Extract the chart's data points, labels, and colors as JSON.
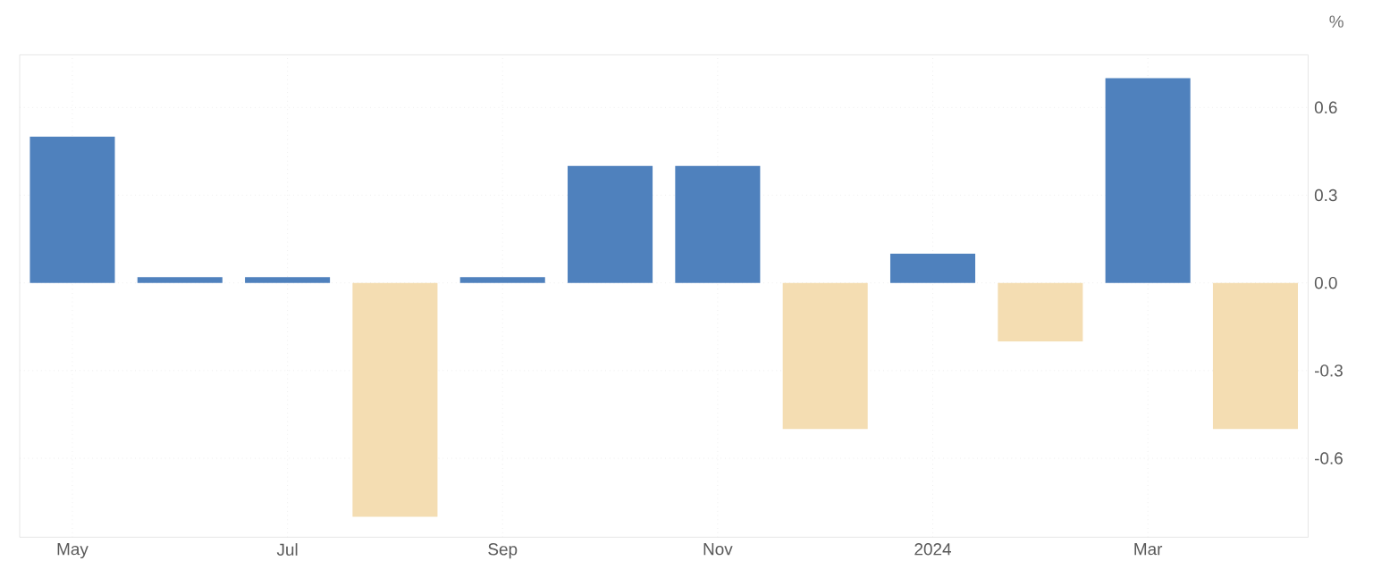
{
  "chart_data": {
    "type": "bar",
    "ylabel": "%",
    "categories": [
      "May",
      null,
      "Jul",
      null,
      "Sep",
      null,
      "Nov",
      null,
      "2024",
      null,
      "Mar",
      null
    ],
    "values": [
      0.5,
      0.02,
      0.02,
      -0.8,
      0.02,
      0.4,
      0.4,
      -0.5,
      0.1,
      -0.2,
      0.7,
      -0.5
    ],
    "colors": [
      "#4f81bd",
      "#4f81bd",
      "#4f81bd",
      "#f4ddb2",
      "#4f81bd",
      "#4f81bd",
      "#4f81bd",
      "#f4ddb2",
      "#4f81bd",
      "#f4ddb2",
      "#4f81bd",
      "#f4ddb2"
    ],
    "ylim": [
      -0.87,
      0.78
    ],
    "yticks": [
      0.6,
      0.3,
      {
        "value": 0,
        "label": "0.0"
      },
      -0.3,
      -0.6
    ],
    "grid": true
  }
}
